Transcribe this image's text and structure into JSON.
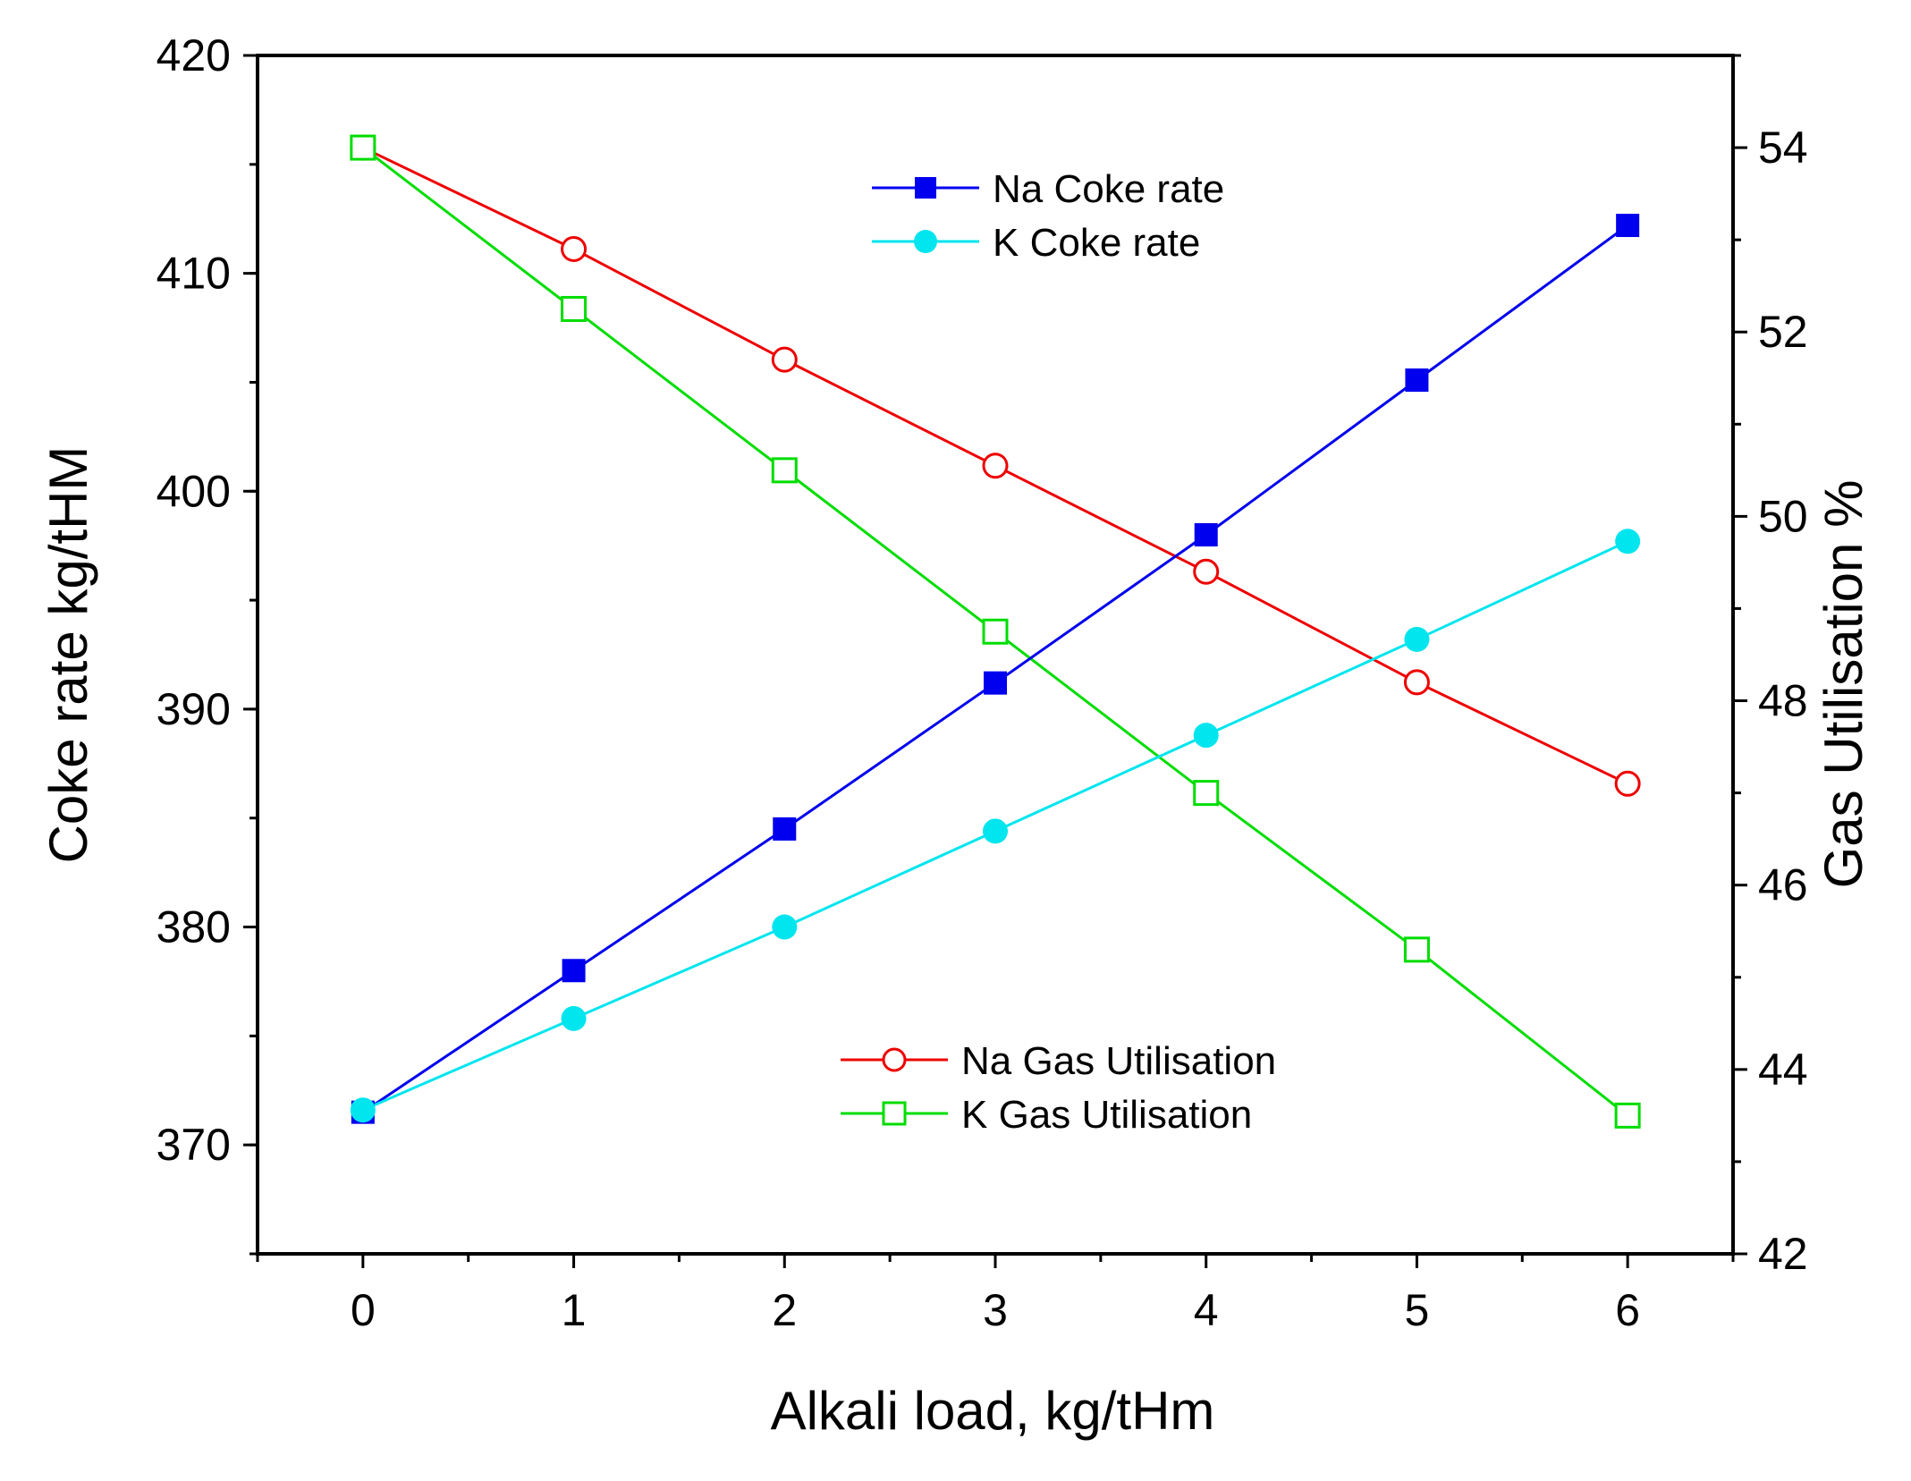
{
  "chart_data": {
    "type": "line",
    "x_axis": {
      "label": "Alkali load, kg/tHm",
      "range": [
        -0.5,
        6.5
      ],
      "ticks": [
        0,
        1,
        2,
        3,
        4,
        5,
        6
      ],
      "tick_labels": [
        "0",
        "1",
        "2",
        "3",
        "4",
        "5",
        "6"
      ]
    },
    "y_left": {
      "label": "Coke rate kg/tHM",
      "range": [
        365,
        420
      ],
      "ticks": [
        370,
        380,
        390,
        400,
        410,
        420
      ],
      "tick_labels": [
        "370",
        "380",
        "390",
        "400",
        "410",
        "420"
      ]
    },
    "y_right": {
      "label": "Gas Utilisation %",
      "range": [
        42,
        55
      ],
      "ticks": [
        42,
        44,
        46,
        48,
        50,
        52,
        54
      ],
      "tick_labels": [
        "42",
        "44",
        "46",
        "48",
        "50",
        "52",
        "54"
      ]
    },
    "x": [
      0,
      1,
      2,
      3,
      4,
      5,
      6
    ],
    "series": [
      {
        "name": "Na Coke rate",
        "axis": "left",
        "color": "#0000ee",
        "marker": "filled-square",
        "values": [
          371.5,
          378.0,
          384.5,
          391.2,
          398.0,
          405.1,
          412.2
        ]
      },
      {
        "name": "K Coke rate",
        "axis": "left",
        "color": "#00e5ee",
        "marker": "filled-circle",
        "values": [
          371.6,
          375.8,
          380.0,
          384.4,
          388.8,
          393.2,
          397.7
        ]
      },
      {
        "name": "Na Gas Utilisation",
        "axis": "right",
        "color": "#ee0000",
        "marker": "open-circle",
        "values": [
          54.0,
          52.9,
          51.7,
          50.55,
          49.4,
          48.2,
          47.1
        ]
      },
      {
        "name": "K Gas Utilisation",
        "axis": "right",
        "color": "#00dd00",
        "marker": "open-square",
        "values": [
          54.0,
          52.25,
          50.5,
          48.75,
          47.0,
          45.3,
          43.5
        ]
      }
    ],
    "legends": [
      {
        "position": "top-center",
        "entries": [
          "Na Coke rate",
          "K Coke rate"
        ]
      },
      {
        "position": "bottom-center",
        "entries": [
          "Na Gas Utilisation",
          "K Gas Utilisation"
        ]
      }
    ]
  }
}
